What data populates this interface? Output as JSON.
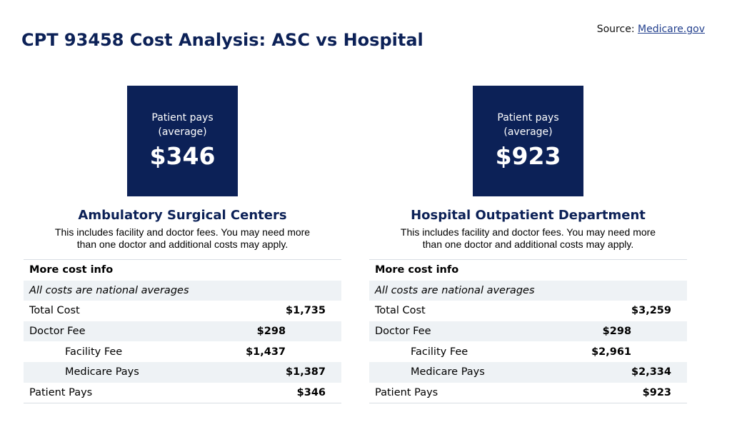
{
  "title": "CPT 93458 Cost Analysis: ASC vs Hospital",
  "source": {
    "label": "Source:",
    "link": "Medicare.gov"
  },
  "panels": [
    {
      "pay_label_1": "Patient pays",
      "pay_label_2": "(average)",
      "pay_amount": "$346",
      "heading": "Ambulatory Surgical Centers",
      "desc_1": "This includes facility and doctor fees. You may need more",
      "desc_2": "than one doctor and additional costs may apply.",
      "table_header": "More cost info",
      "table_note": "All costs are national averages",
      "rows": {
        "total": {
          "label": "Total Cost",
          "value": "$1,735"
        },
        "doctor": {
          "label": "Doctor Fee",
          "value": "$298"
        },
        "facility": {
          "label": "Facility Fee",
          "value": "$1,437"
        },
        "medicare": {
          "label": "Medicare Pays",
          "value": "$1,387"
        },
        "patient": {
          "label": "Patient Pays",
          "value": "$346"
        }
      }
    },
    {
      "pay_label_1": "Patient pays",
      "pay_label_2": "(average)",
      "pay_amount": "$923",
      "heading": "Hospital Outpatient Department",
      "desc_1": "This includes facility and doctor fees. You may need more",
      "desc_2": "than one doctor and additional costs may apply.",
      "table_header": "More cost info",
      "table_note": "All costs are national averages",
      "rows": {
        "total": {
          "label": "Total Cost",
          "value": "$3,259"
        },
        "doctor": {
          "label": "Doctor Fee",
          "value": "$298"
        },
        "facility": {
          "label": "Facility Fee",
          "value": "$2,961"
        },
        "medicare": {
          "label": "Medicare Pays",
          "value": "$2,334"
        },
        "patient": {
          "label": "Patient Pays",
          "value": "$923"
        }
      }
    }
  ],
  "colors": {
    "navy": "#0c2157",
    "row_alt": "#eef2f5",
    "link": "#23408e"
  }
}
